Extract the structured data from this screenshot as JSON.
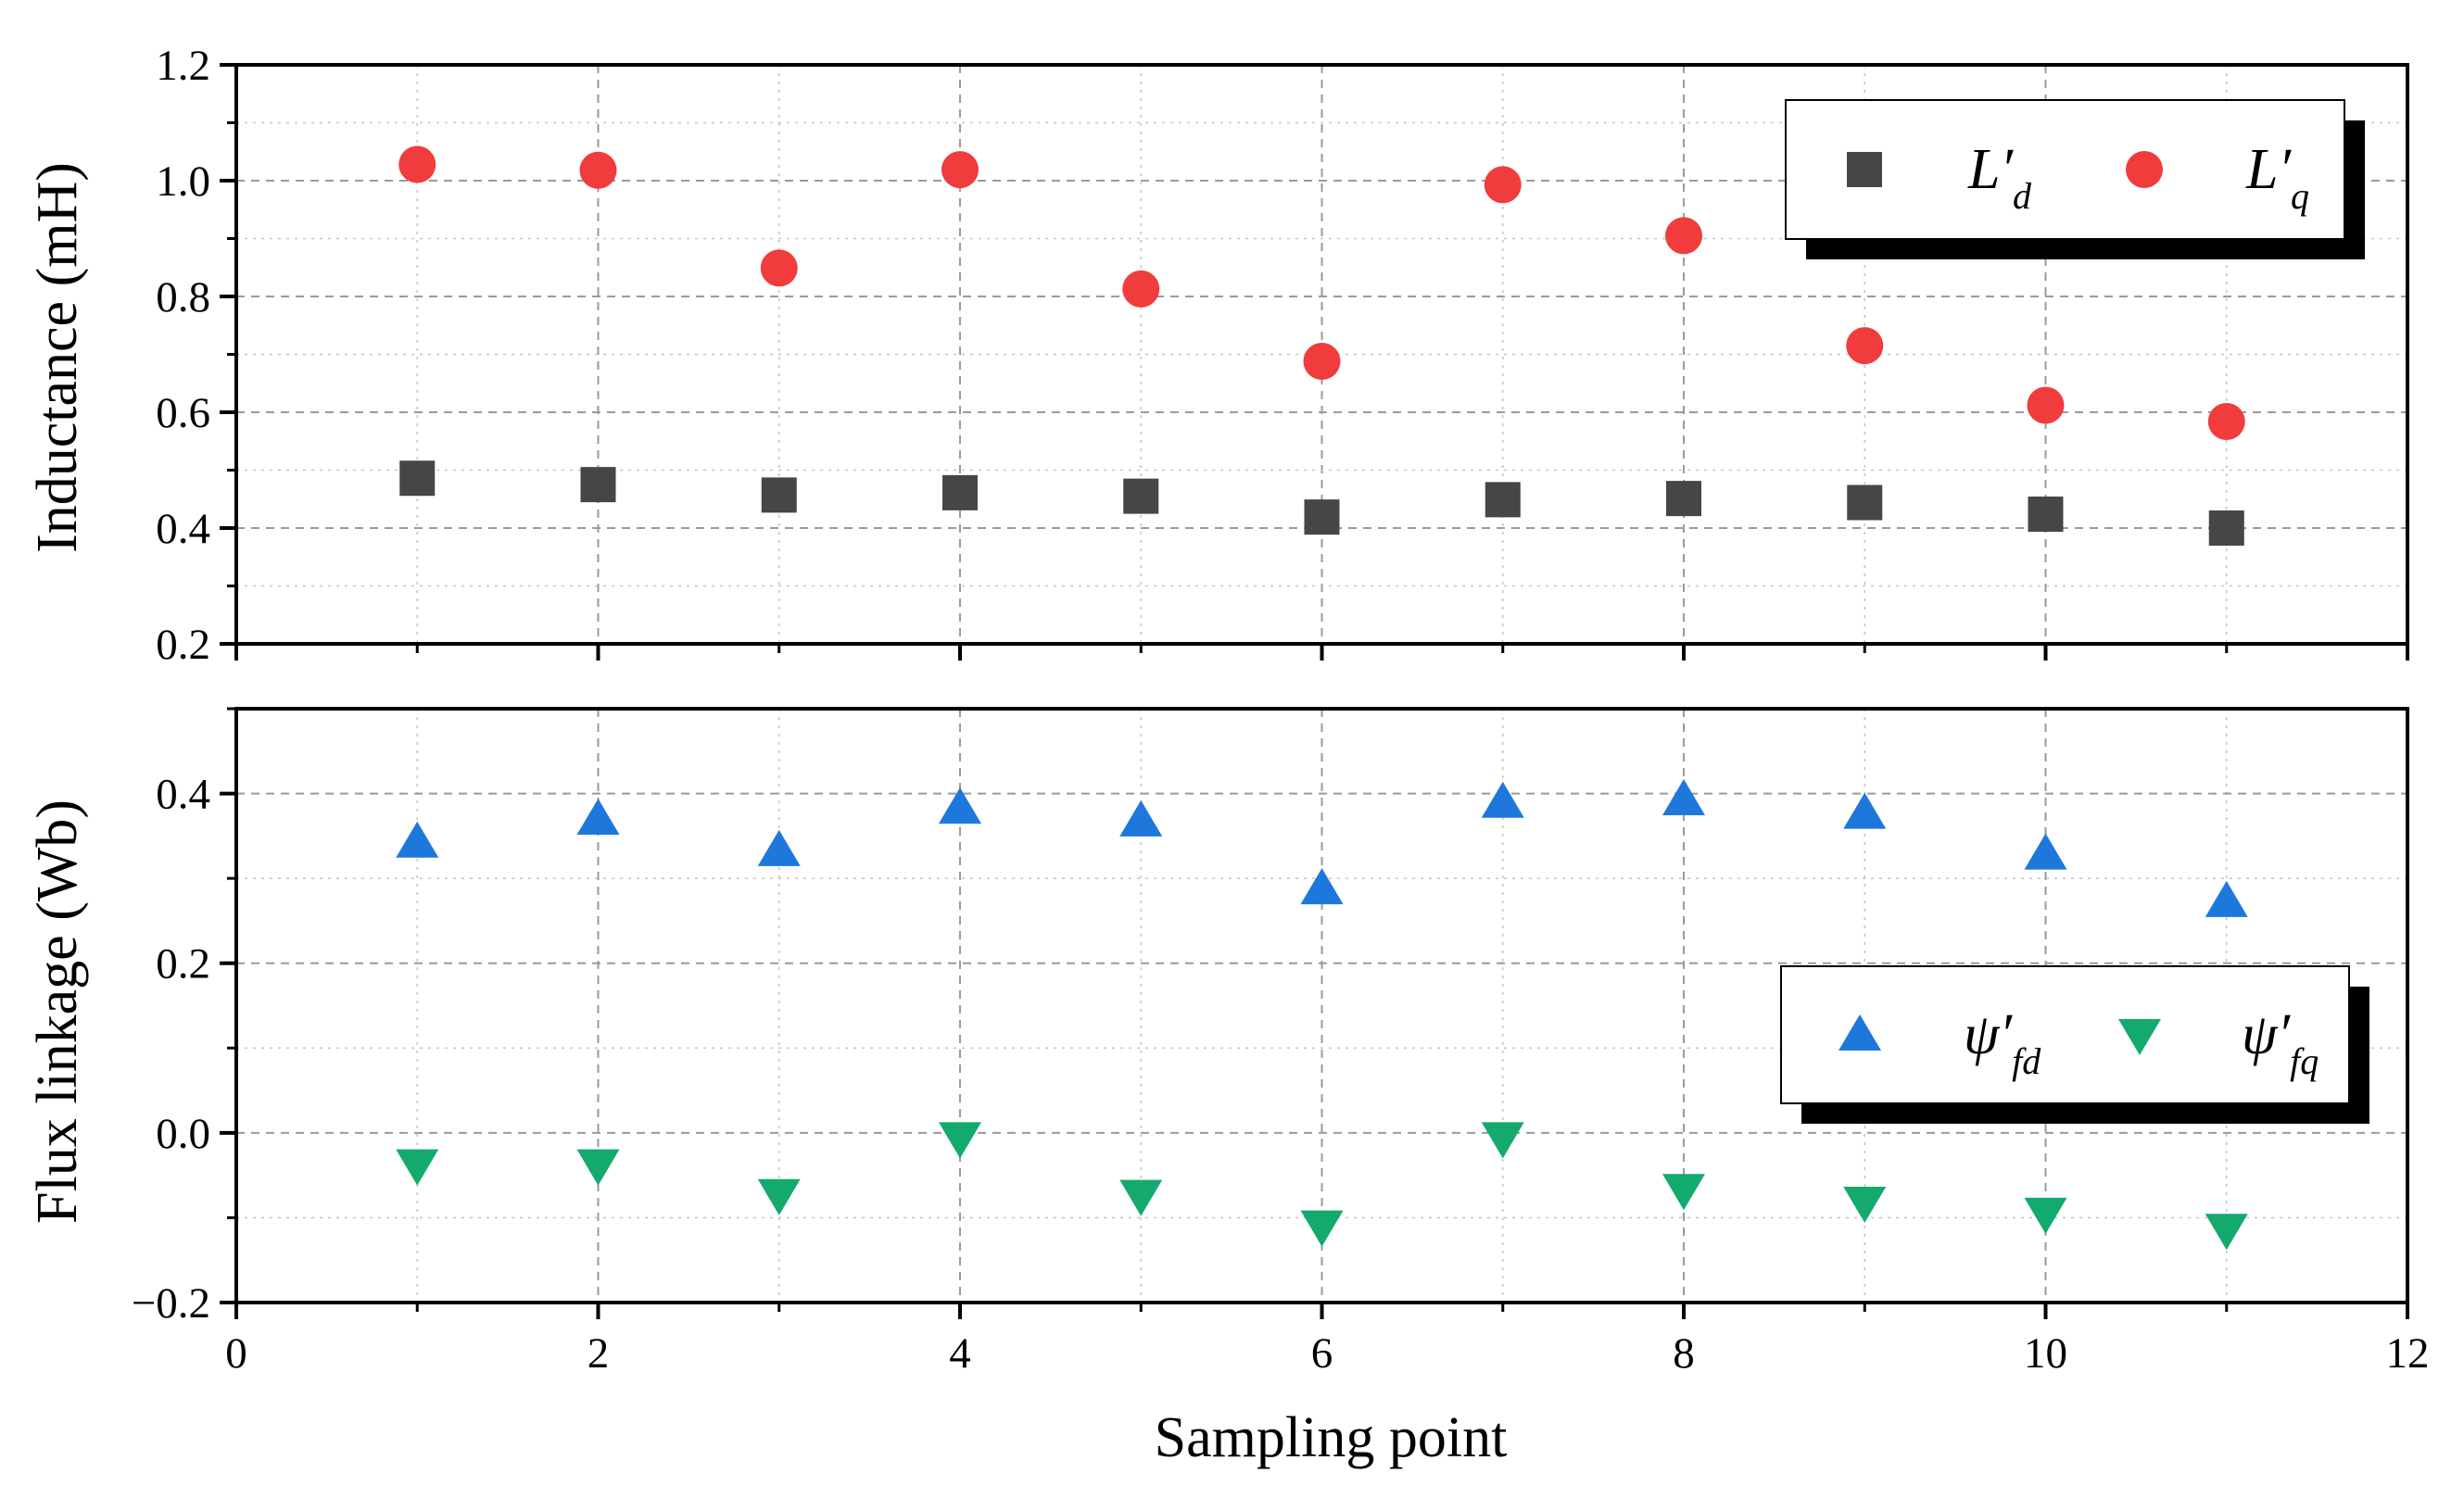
{
  "chart_data": [
    {
      "type": "scatter",
      "ylabel": "Inductance (mH)",
      "xlim": [
        0,
        12
      ],
      "ylim": [
        0.2,
        1.2
      ],
      "yticks": [
        "0.2",
        "0.4",
        "0.6",
        "0.8",
        "1.0",
        "1.2"
      ],
      "grid": true,
      "legend_position": "top-right",
      "x": [
        1,
        2,
        3,
        4,
        5,
        6,
        7,
        8,
        9,
        10,
        11
      ],
      "series": [
        {
          "key": "Ld",
          "name": "L′d",
          "symbol": "L′",
          "subscript": "d",
          "marker": "square",
          "color": "#464646",
          "values": [
            0.486,
            0.475,
            0.457,
            0.461,
            0.455,
            0.419,
            0.449,
            0.451,
            0.444,
            0.424,
            0.4
          ]
        },
        {
          "key": "Lq",
          "name": "L′q",
          "symbol": "L′",
          "subscript": "q",
          "marker": "circle",
          "color": "#f03c3c",
          "values": [
            1.028,
            1.018,
            0.849,
            1.019,
            0.813,
            0.688,
            0.993,
            0.905,
            0.715,
            0.612,
            0.584
          ]
        }
      ]
    },
    {
      "type": "scatter",
      "ylabel": "Flux linkage (Wb)",
      "xlabel": "Sampling point",
      "xlim": [
        0,
        12
      ],
      "ylim": [
        -0.2,
        0.5
      ],
      "xticks": [
        "0",
        "2",
        "4",
        "6",
        "8",
        "10",
        "12"
      ],
      "yticks": [
        "−0.2",
        "0.0",
        "0.2",
        "0.4"
      ],
      "grid": true,
      "legend_position": "middle-right",
      "x": [
        1,
        2,
        3,
        4,
        5,
        6,
        7,
        8,
        9,
        10,
        11
      ],
      "series": [
        {
          "key": "psifd",
          "name": "ψ′fd",
          "symbol": "ψ′",
          "subscript": "fd",
          "marker": "triangle-up",
          "color": "#1e78dc",
          "values": [
            0.343,
            0.37,
            0.333,
            0.383,
            0.368,
            0.288,
            0.39,
            0.393,
            0.377,
            0.329,
            0.273
          ]
        },
        {
          "key": "psifq",
          "name": "ψ′fq",
          "symbol": "ψ′",
          "subscript": "fq",
          "marker": "triangle-down",
          "color": "#14aa6e",
          "values": [
            -0.038,
            -0.038,
            -0.073,
            -0.006,
            -0.074,
            -0.11,
            -0.006,
            -0.067,
            -0.082,
            -0.095,
            -0.114
          ]
        }
      ]
    }
  ]
}
